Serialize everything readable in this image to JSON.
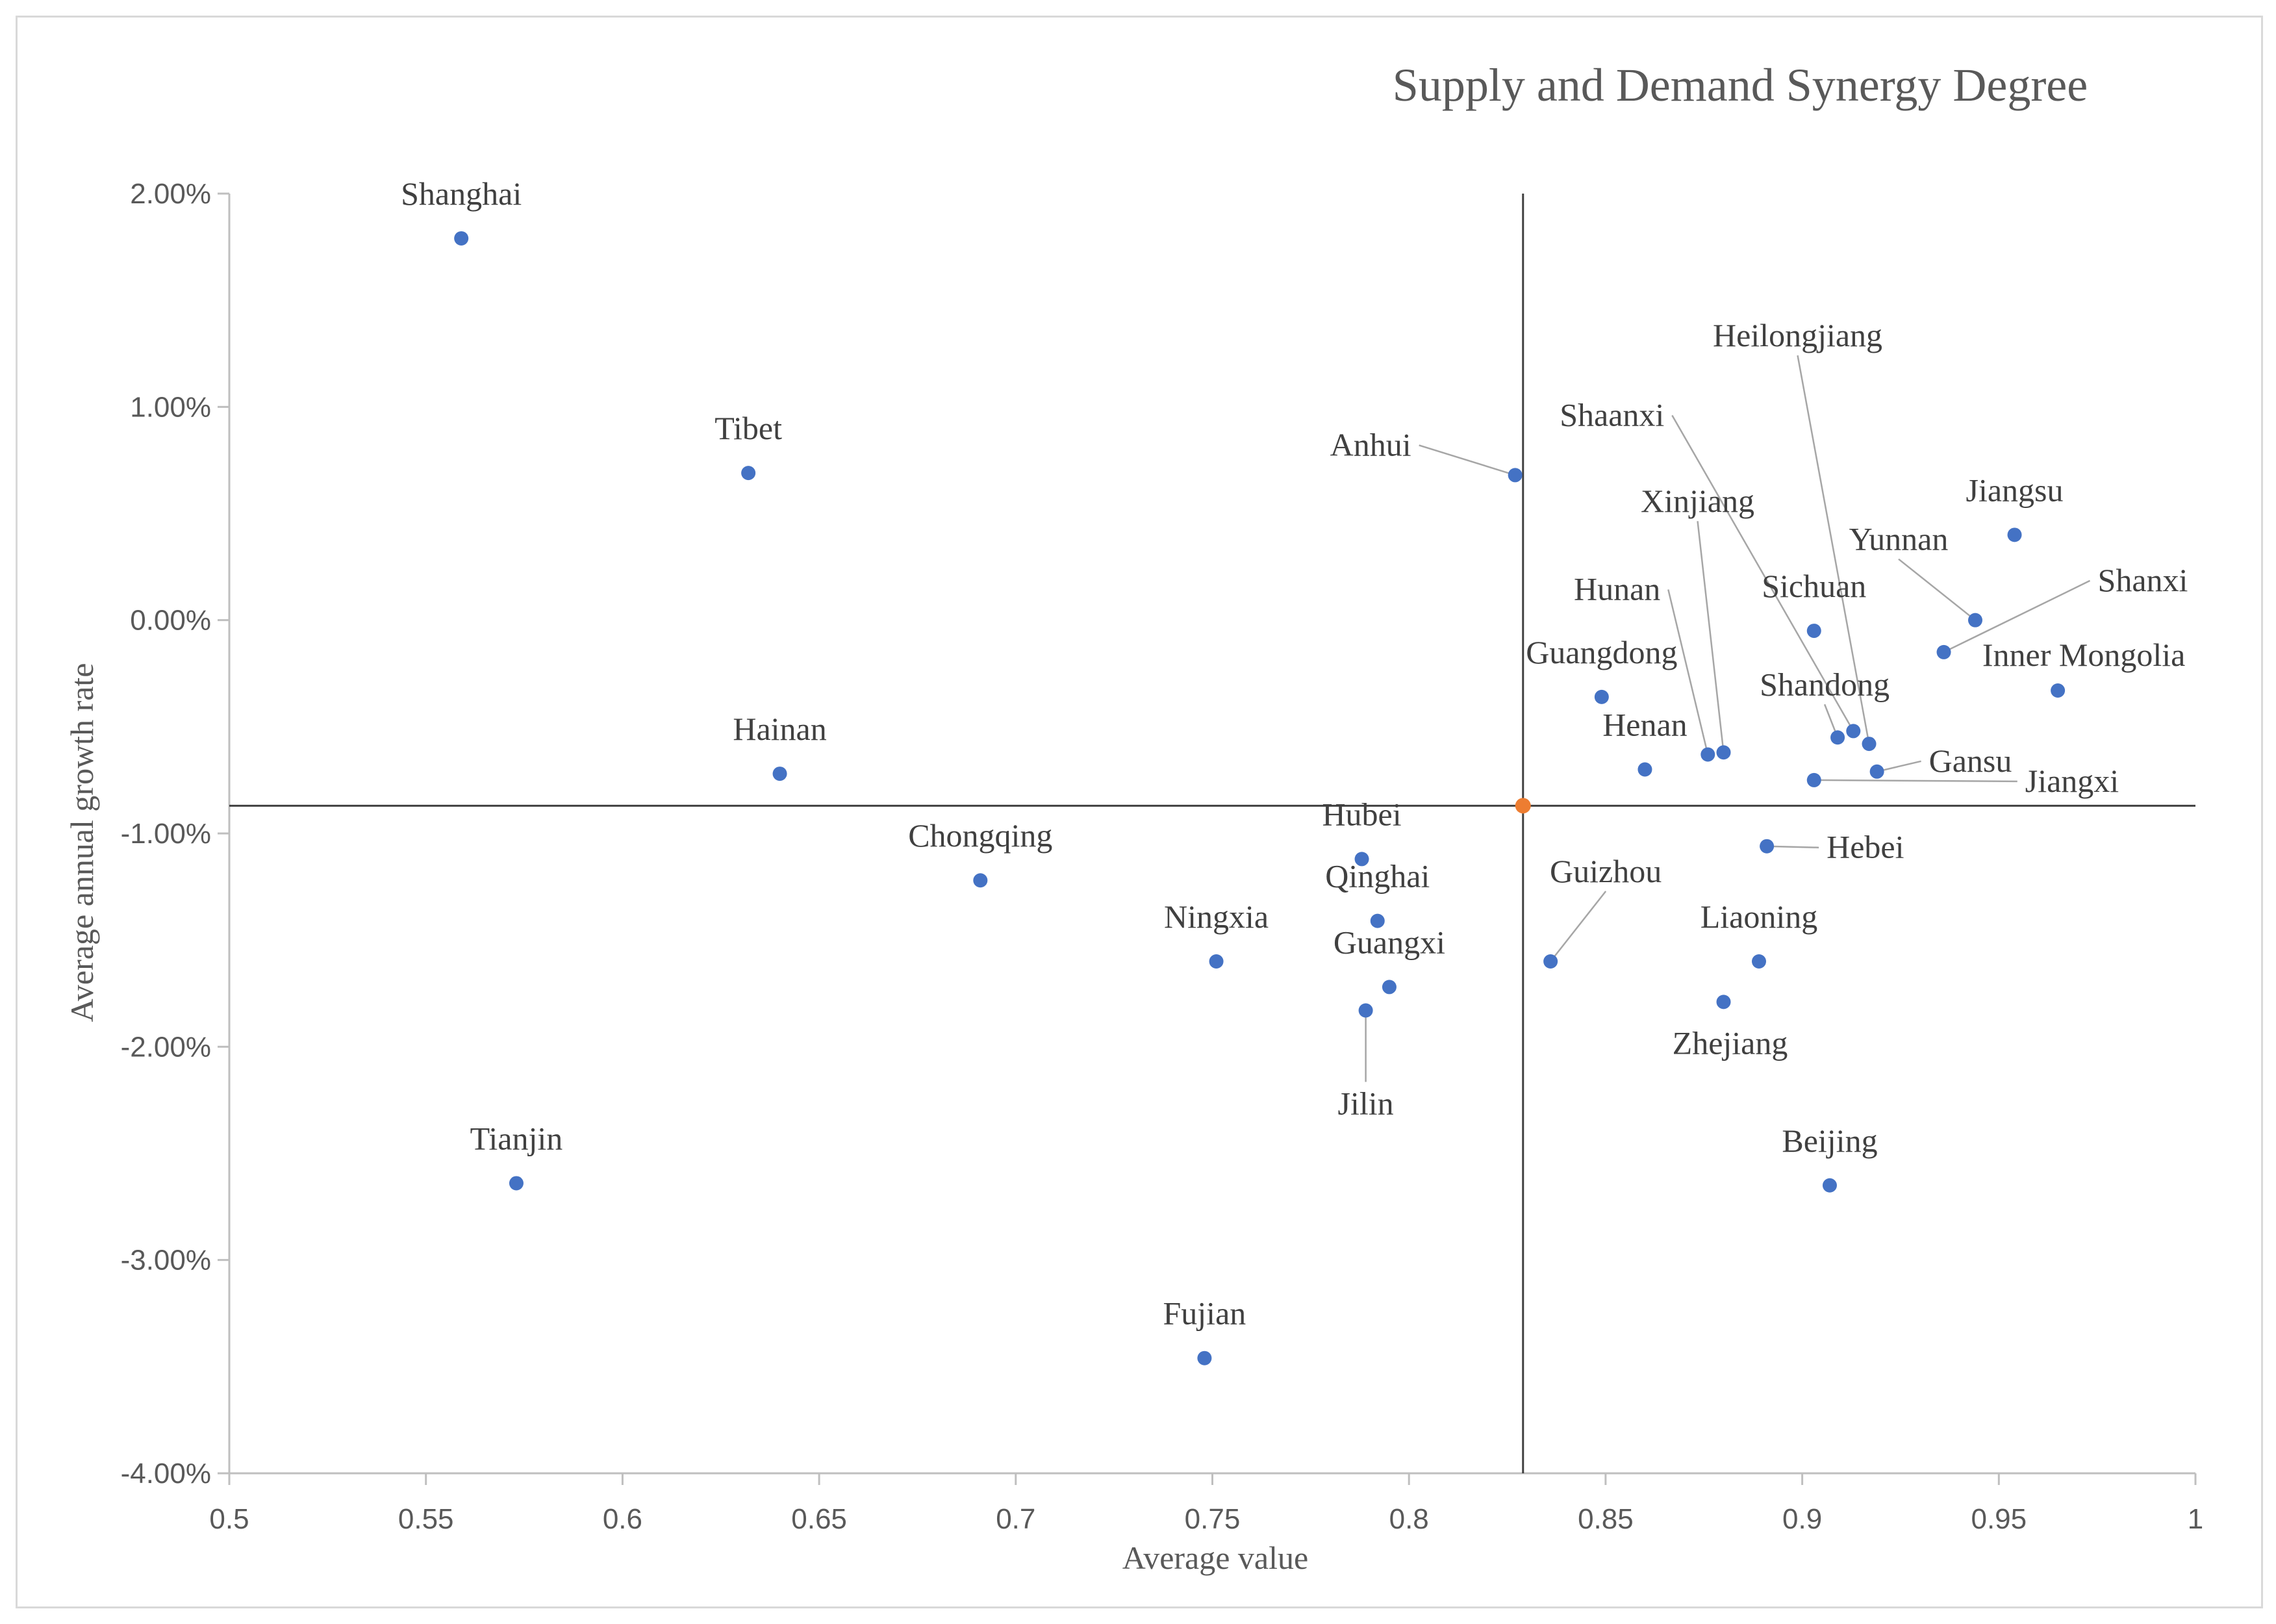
{
  "chart_data": {
    "type": "scatter",
    "title": "Supply and Demand Synergy Degree",
    "xlabel": "Average value",
    "ylabel": "Average annual growth rate",
    "xlim": [
      0.5,
      1.0
    ],
    "ylim": [
      -4.0,
      2.0
    ],
    "xticks": [
      "0.5",
      "0.55",
      "0.6",
      "0.65",
      "0.7",
      "0.75",
      "0.8",
      "0.85",
      "0.9",
      "0.95",
      "1"
    ],
    "yticks": [
      "2.00%",
      "1.00%",
      "0.00%",
      "-1.00%",
      "-2.00%",
      "-3.00%",
      "-4.00%"
    ],
    "grid": false,
    "legend": "none",
    "point_color": "#4472c4",
    "mean_color": "#ed7d31",
    "mean_point": {
      "x": 0.829,
      "y": -0.87
    },
    "points": [
      {
        "name": "Shanghai",
        "x": 0.559,
        "y": 1.79
      },
      {
        "name": "Tibet",
        "x": 0.632,
        "y": 0.69
      },
      {
        "name": "Hainan",
        "x": 0.64,
        "y": -0.72
      },
      {
        "name": "Chongqing",
        "x": 0.691,
        "y": -1.22
      },
      {
        "name": "Tianjin",
        "x": 0.573,
        "y": -2.64
      },
      {
        "name": "Fujian",
        "x": 0.748,
        "y": -3.46
      },
      {
        "name": "Ningxia",
        "x": 0.751,
        "y": -1.6
      },
      {
        "name": "Hubei",
        "x": 0.788,
        "y": -1.12
      },
      {
        "name": "Qinghai",
        "x": 0.792,
        "y": -1.41
      },
      {
        "name": "Guangxi",
        "x": 0.795,
        "y": -1.72
      },
      {
        "name": "Jilin",
        "x": 0.789,
        "y": -1.83
      },
      {
        "name": "Anhui",
        "x": 0.827,
        "y": 0.68
      },
      {
        "name": "Guizhou",
        "x": 0.836,
        "y": -1.6
      },
      {
        "name": "Guangdong",
        "x": 0.849,
        "y": -0.36
      },
      {
        "name": "Henan",
        "x": 0.86,
        "y": -0.7
      },
      {
        "name": "Hunan",
        "x": 0.876,
        "y": -0.63
      },
      {
        "name": "Xinjiang",
        "x": 0.88,
        "y": -0.62
      },
      {
        "name": "Zhejiang",
        "x": 0.88,
        "y": -1.79
      },
      {
        "name": "Liaoning",
        "x": 0.889,
        "y": -1.6
      },
      {
        "name": "Hebei",
        "x": 0.891,
        "y": -1.06
      },
      {
        "name": "Sichuan",
        "x": 0.903,
        "y": -0.05
      },
      {
        "name": "Jiangxi",
        "x": 0.903,
        "y": -0.75
      },
      {
        "name": "Beijing",
        "x": 0.907,
        "y": -2.65
      },
      {
        "name": "Shandong",
        "x": 0.909,
        "y": -0.55
      },
      {
        "name": "Shaanxi",
        "x": 0.913,
        "y": -0.52
      },
      {
        "name": "Heilongjiang",
        "x": 0.917,
        "y": -0.58
      },
      {
        "name": "Gansu",
        "x": 0.919,
        "y": -0.71
      },
      {
        "name": "Shanxi",
        "x": 0.936,
        "y": -0.15
      },
      {
        "name": "Yunnan",
        "x": 0.944,
        "y": 0.0
      },
      {
        "name": "Jiangsu",
        "x": 0.954,
        "y": 0.4
      },
      {
        "name": "Inner Mongolia",
        "x": 0.965,
        "y": -0.33
      }
    ]
  }
}
